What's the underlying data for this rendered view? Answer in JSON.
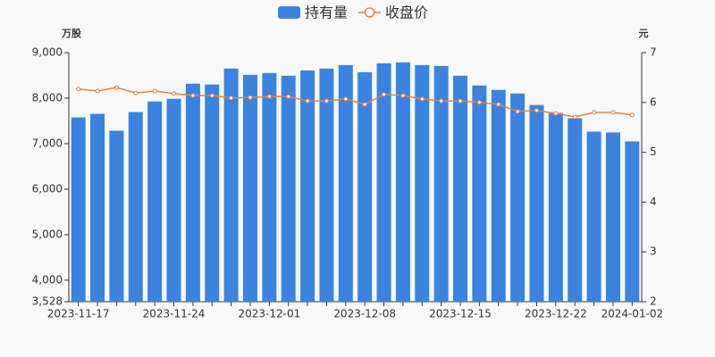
{
  "chart_data": {
    "type": "bar-line",
    "y_axis_label": "万股",
    "y2_axis_label": "元",
    "categories": [
      "2023-11-17",
      null,
      null,
      null,
      null,
      "2023-11-24",
      null,
      null,
      null,
      null,
      "2023-12-01",
      null,
      null,
      null,
      null,
      "2023-12-08",
      null,
      null,
      null,
      null,
      "2023-12-15",
      null,
      null,
      null,
      null,
      "2023-12-22",
      null,
      null,
      null,
      "2024-01-02"
    ],
    "series": [
      {
        "name": "持有量",
        "type": "bar",
        "color": "#3a84e0",
        "values": [
          7577,
          7655,
          7285,
          7694,
          7928,
          7986,
          8318,
          8300,
          8650,
          8513,
          8552,
          8493,
          8610,
          8650,
          8727,
          8571,
          8766,
          8786,
          8727,
          8708,
          8493,
          8279,
          8181,
          8103,
          7850,
          7674,
          7557,
          7265,
          7246,
          7050
        ]
      },
      {
        "name": "收盘价",
        "type": "line",
        "axis": "y2",
        "color": "#e8803c",
        "values": [
          6.27,
          6.23,
          6.3,
          6.19,
          6.23,
          6.18,
          6.14,
          6.14,
          6.09,
          6.1,
          6.12,
          6.12,
          6.03,
          6.03,
          6.07,
          5.96,
          6.16,
          6.14,
          6.07,
          6.03,
          6.03,
          6.0,
          5.96,
          5.82,
          5.84,
          5.78,
          5.71,
          5.8,
          5.8,
          5.75
        ]
      }
    ],
    "ylim": [
      3528,
      9000
    ],
    "yticks": [
      {
        "value": 3528,
        "label": "3,528"
      },
      {
        "value": 4000,
        "label": "4,000"
      },
      {
        "value": 5000,
        "label": "5,000"
      },
      {
        "value": 6000,
        "label": "6,000"
      },
      {
        "value": 7000,
        "label": "7,000"
      },
      {
        "value": 8000,
        "label": "8,000"
      },
      {
        "value": 9000,
        "label": "9,000"
      }
    ],
    "y2lim": [
      2,
      7
    ],
    "y2ticks": [
      2,
      3,
      4,
      5,
      6,
      7
    ],
    "legend": "top"
  }
}
